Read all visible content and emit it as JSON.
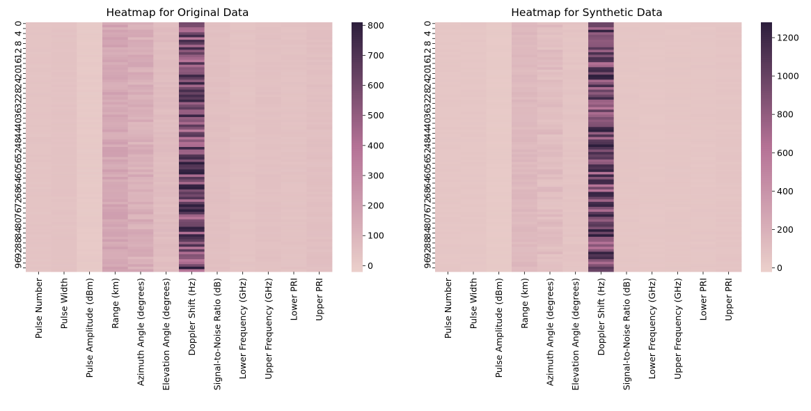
{
  "chart_data": [
    {
      "type": "heatmap",
      "title": "Heatmap for Original Data",
      "columns": [
        "Pulse Number",
        "Pulse Width",
        "Pulse Amplitude (dBm)",
        "Range (km)",
        "Azimuth Angle (degrees)",
        "Elevation Angle (degrees)",
        "Doppler Shift (Hz)",
        "Signal-to-Noise Ratio (dB)",
        "Lower Frequency (GHz)",
        "Upper Frequency (GHz)",
        "Lower PRI",
        "Upper PRI"
      ],
      "row_count": 100,
      "row_tick_labels": [
        "0",
        "4",
        "8",
        "12",
        "16",
        "20",
        "24",
        "28",
        "32",
        "36",
        "40",
        "44",
        "48",
        "52",
        "56",
        "60",
        "64",
        "68",
        "72",
        "76",
        "80",
        "84",
        "88",
        "92",
        "96"
      ],
      "row_tick_step": 4,
      "colorbar": {
        "min": -20,
        "max": 810,
        "ticks": [
          0,
          100,
          200,
          300,
          400,
          500,
          600,
          700,
          800
        ]
      },
      "column_ranges": [
        [
          30,
          40
        ],
        [
          35,
          45
        ],
        [
          5,
          15
        ],
        [
          120,
          200
        ],
        [
          80,
          170
        ],
        [
          50,
          80
        ],
        [
          370,
          810
        ],
        [
          45,
          60
        ],
        [
          30,
          45
        ],
        [
          40,
          55
        ],
        [
          35,
          50
        ],
        [
          45,
          65
        ]
      ],
      "note_values": "cell values approximated from colors"
    },
    {
      "type": "heatmap",
      "title": "Heatmap for Synthetic Data",
      "columns": [
        "Pulse Number",
        "Pulse Width",
        "Pulse Amplitude (dBm)",
        "Range (km)",
        "Azimuth Angle (degrees)",
        "Elevation Angle (degrees)",
        "Doppler Shift (Hz)",
        "Signal-to-Noise Ratio (dB)",
        "Lower Frequency (GHz)",
        "Upper Frequency (GHz)",
        "Lower PRI",
        "Upper PRI"
      ],
      "row_count": 100,
      "row_tick_labels": [
        "0",
        "4",
        "8",
        "12",
        "16",
        "20",
        "24",
        "28",
        "32",
        "36",
        "40",
        "44",
        "48",
        "52",
        "56",
        "60",
        "64",
        "68",
        "72",
        "76",
        "80",
        "84",
        "88",
        "92",
        "96"
      ],
      "row_tick_step": 4,
      "colorbar": {
        "min": -20,
        "max": 1280,
        "ticks": [
          0,
          200,
          400,
          600,
          800,
          1000,
          1200
        ]
      },
      "column_ranges": [
        [
          40,
          55
        ],
        [
          40,
          55
        ],
        [
          20,
          30
        ],
        [
          110,
          170
        ],
        [
          60,
          160
        ],
        [
          50,
          80
        ],
        [
          600,
          1280
        ],
        [
          45,
          60
        ],
        [
          40,
          55
        ],
        [
          45,
          60
        ],
        [
          45,
          60
        ],
        [
          50,
          70
        ]
      ]
    }
  ],
  "colors": {
    "cmap_low": "#ebd0cb",
    "cmap_mid": "#b57296",
    "cmap_high": "#2c1e3c"
  }
}
